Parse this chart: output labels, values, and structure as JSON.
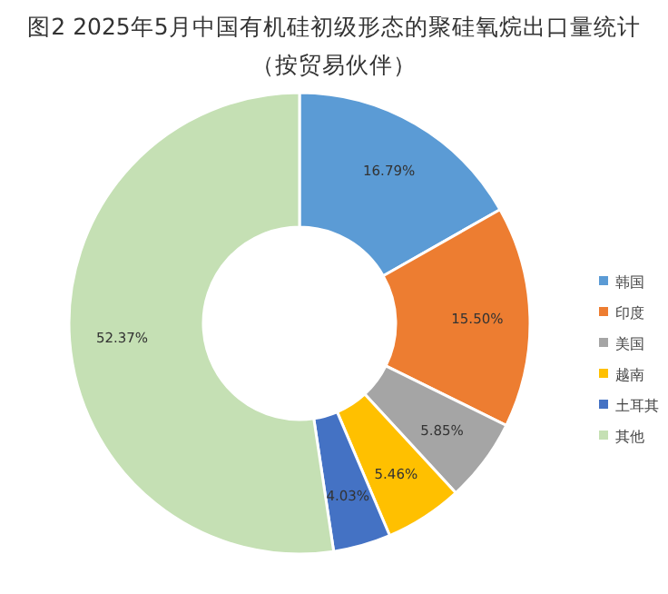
{
  "chart_data": {
    "type": "donut",
    "title": "图2 2025年5月中国有机硅初级形态的聚硅氧烷出口量统计",
    "subtitle": "（按贸易伙伴）",
    "categories": [
      "韩国",
      "印度",
      "美国",
      "越南",
      "土耳其",
      "其他"
    ],
    "values": [
      16.79,
      15.5,
      5.85,
      5.46,
      4.03,
      52.37
    ],
    "value_labels": [
      "16.79%",
      "15.50%",
      "5.85%",
      "5.46%",
      "4.03%",
      "52.37%"
    ],
    "colors": [
      "#5b9bd5",
      "#ed7d31",
      "#a5a5a5",
      "#ffc000",
      "#4472c4",
      "#c5e0b4"
    ],
    "legend": "right"
  }
}
